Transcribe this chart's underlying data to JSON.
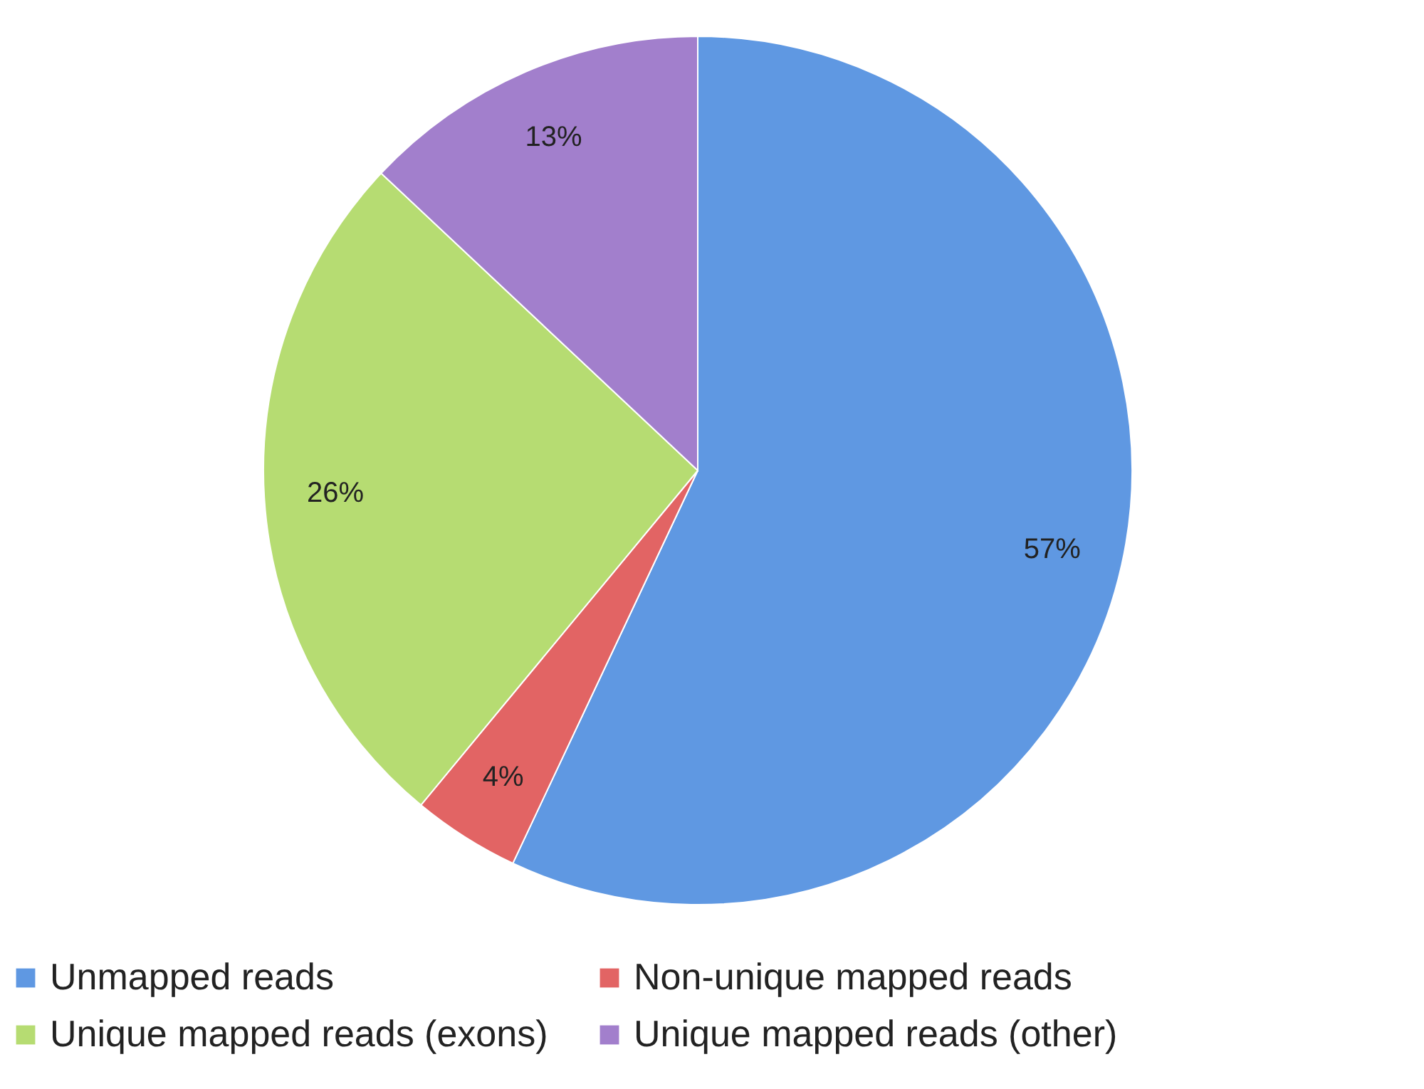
{
  "chart_data": {
    "type": "pie",
    "categories": [
      "Unmapped reads",
      "Non-unique mapped reads",
      "Unique mapped reads (exons)",
      "Unique mapped reads (other)"
    ],
    "values": [
      57,
      4,
      26,
      13
    ],
    "colors": [
      "#5f98e2",
      "#e26464",
      "#b6dc72",
      "#a27fcc"
    ],
    "value_labels": [
      "57%",
      "4%",
      "26%",
      "13%"
    ],
    "legend": "bottom"
  }
}
